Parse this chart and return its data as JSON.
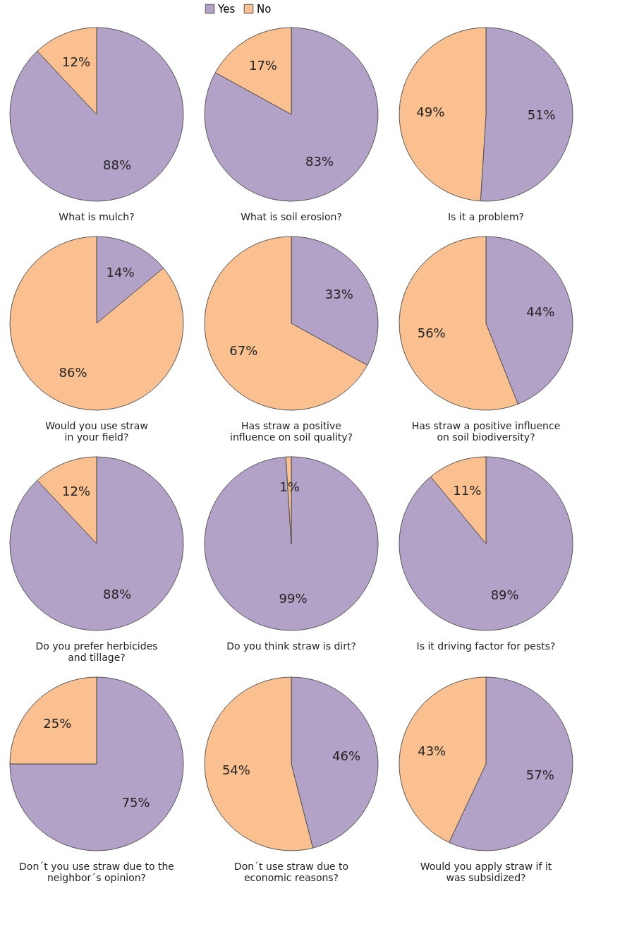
{
  "chart_data": [
    {
      "type": "pie",
      "title": "What is mulch?",
      "categories": [
        null,
        null
      ],
      "values": [
        88,
        12
      ],
      "value_labels": [
        "88%",
        "12%"
      ],
      "colors": [
        "#b3a2c7",
        "#fac090"
      ]
    },
    {
      "type": "pie",
      "title": "What is soil erosion?",
      "categories": [
        "Yes",
        "No"
      ],
      "values": [
        83,
        17
      ],
      "value_labels": [
        "83%",
        "17%"
      ],
      "colors": [
        "#b3a2c7",
        "#fac090"
      ],
      "legend": "top"
    },
    {
      "type": "pie",
      "title": "Is it a problem?",
      "categories": [
        null,
        null
      ],
      "values": [
        51,
        49
      ],
      "value_labels": [
        "51%",
        "49%"
      ],
      "colors": [
        "#b3a2c7",
        "#fac090"
      ]
    },
    {
      "type": "pie",
      "title": "Would you use straw\nin your field?",
      "categories": [
        null,
        null
      ],
      "values": [
        14,
        86
      ],
      "value_labels": [
        "14%",
        "86%"
      ],
      "colors": [
        "#b3a2c7",
        "#fac090"
      ]
    },
    {
      "type": "pie",
      "title": "Has straw a positive\ninfluence on soil quality?",
      "categories": [
        null,
        null
      ],
      "values": [
        33,
        67
      ],
      "value_labels": [
        "33%",
        "67%"
      ],
      "colors": [
        "#b3a2c7",
        "#fac090"
      ]
    },
    {
      "type": "pie",
      "title": "Has straw a positive influence\non soil biodiversity?",
      "categories": [
        null,
        null
      ],
      "values": [
        44,
        56
      ],
      "value_labels": [
        "44%",
        "56%"
      ],
      "colors": [
        "#b3a2c7",
        "#fac090"
      ]
    },
    {
      "type": "pie",
      "title": "Do you prefer herbicides\nand tillage?",
      "categories": [
        null,
        null
      ],
      "values": [
        88,
        12
      ],
      "value_labels": [
        "88%",
        "12%"
      ],
      "colors": [
        "#b3a2c7",
        "#fac090"
      ]
    },
    {
      "type": "pie",
      "title": "Do you think straw is dirt?",
      "categories": [
        null,
        null
      ],
      "values": [
        99,
        1
      ],
      "value_labels": [
        "99%",
        "1%"
      ],
      "colors": [
        "#b3a2c7",
        "#fac090"
      ]
    },
    {
      "type": "pie",
      "title": "Is it driving factor for pests?",
      "categories": [
        null,
        null
      ],
      "values": [
        89,
        11
      ],
      "value_labels": [
        "89%",
        "11%"
      ],
      "colors": [
        "#b3a2c7",
        "#fac090"
      ]
    },
    {
      "type": "pie",
      "title": "Don´t you use straw due to the\nneighbor´s opinion?",
      "categories": [
        null,
        null
      ],
      "values": [
        75,
        25
      ],
      "value_labels": [
        "75%",
        "25%"
      ],
      "colors": [
        "#b3a2c7",
        "#fac090"
      ]
    },
    {
      "type": "pie",
      "title": "Don´t use straw due to\neconomic reasons?",
      "categories": [
        null,
        null
      ],
      "values": [
        46,
        54
      ],
      "value_labels": [
        "46%",
        "54%"
      ],
      "colors": [
        "#b3a2c7",
        "#fac090"
      ]
    },
    {
      "type": "pie",
      "title": "Would you apply straw if it\nwas subsidized?",
      "categories": [
        null,
        null
      ],
      "values": [
        57,
        43
      ],
      "value_labels": [
        "57%",
        "43%"
      ],
      "colors": [
        "#b3a2c7",
        "#fac090"
      ]
    }
  ]
}
